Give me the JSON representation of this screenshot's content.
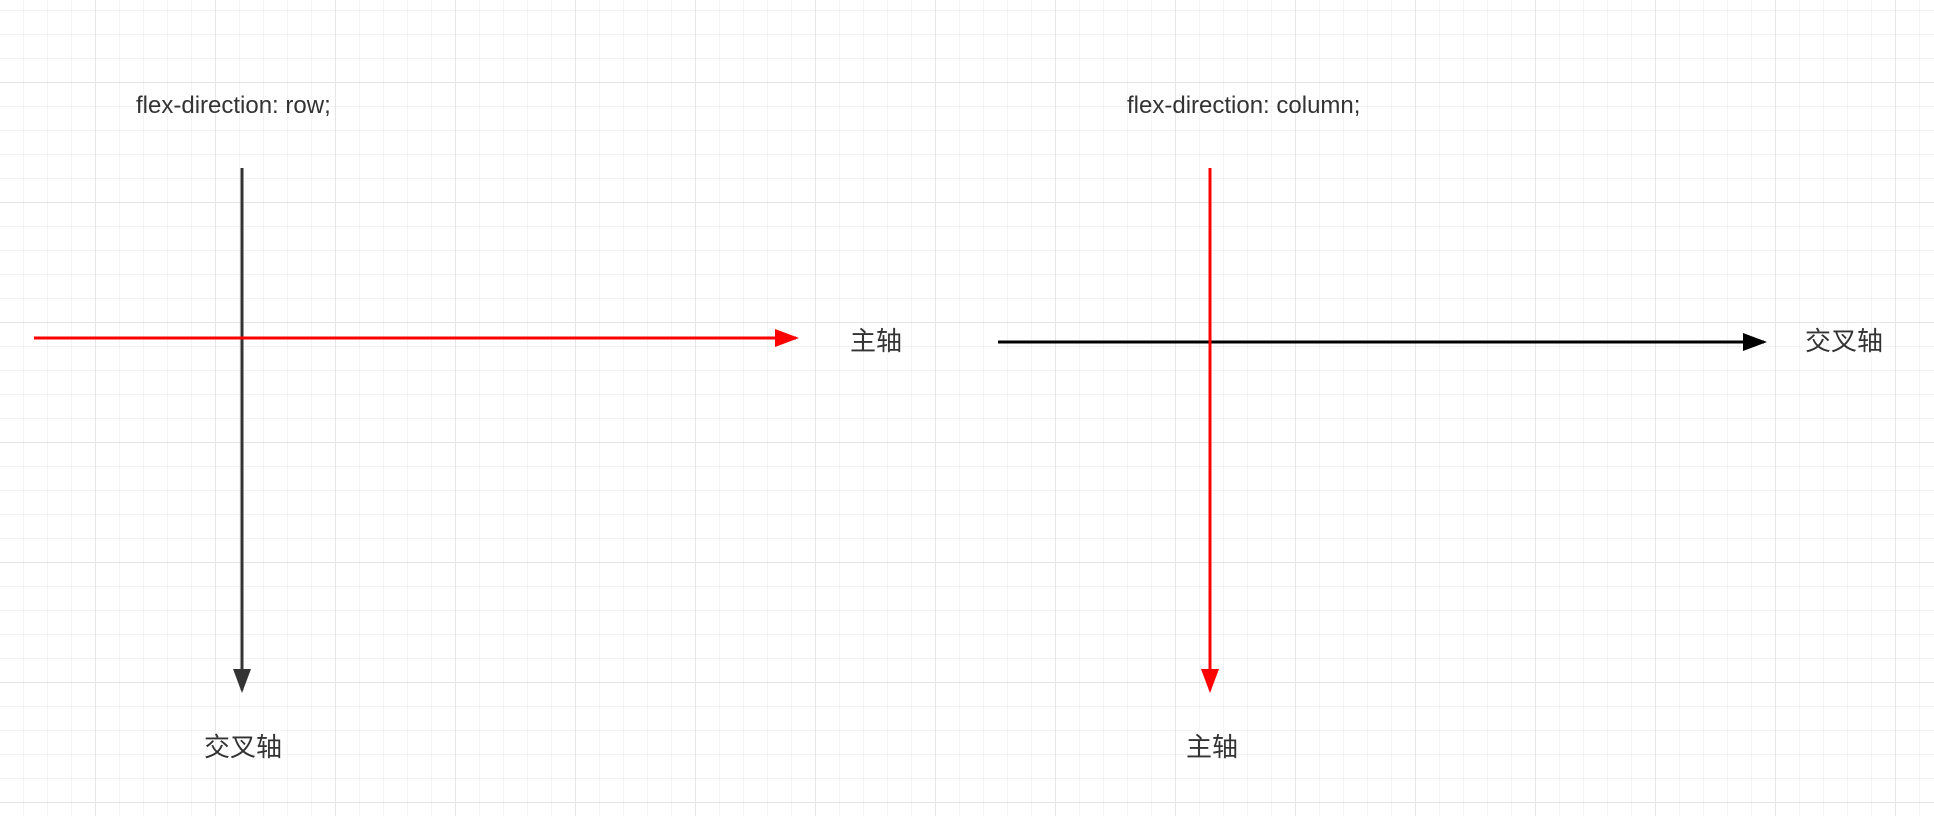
{
  "colors": {
    "main_axis": "#ff0000",
    "cross_axis_row": "#333333",
    "cross_axis_column": "#000000",
    "text": "#333333"
  },
  "diagram_row": {
    "title": "flex-direction: row;",
    "main_axis_label": "主轴",
    "cross_axis_label": "交叉轴",
    "main_axis_direction": "horizontal",
    "cross_axis_direction": "vertical"
  },
  "diagram_column": {
    "title": "flex-direction: column;",
    "main_axis_label": "主轴",
    "cross_axis_label": "交叉轴",
    "main_axis_direction": "vertical",
    "cross_axis_direction": "horizontal"
  }
}
